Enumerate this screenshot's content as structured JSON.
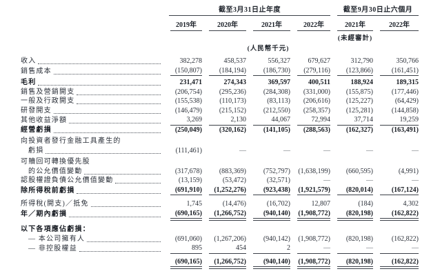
{
  "table": {
    "header": {
      "period_groups": [
        {
          "title": "截至3月31日止年度"
        },
        {
          "title": "截至9月30日止六個月"
        }
      ],
      "year_columns": [
        "2019年",
        "2020年",
        "2021年",
        "2022年",
        "2021年",
        "2022年"
      ],
      "unaudited_note": "(未經審計)",
      "currency_note": "(人民幣千元)"
    },
    "rows": [
      {
        "label": "收入",
        "leader": true,
        "values": [
          "382,278",
          "458,537",
          "556,327",
          "679,627",
          "312,790",
          "350,766"
        ]
      },
      {
        "label": "銷售成本",
        "leader": true,
        "rule": "single",
        "values": [
          "(150,807)",
          "(184,194)",
          "(186,730)",
          "(279,116)",
          "(123,866)",
          "(161,451)"
        ]
      },
      {
        "label": "毛利",
        "leader": true,
        "bold": true,
        "values": [
          "231,471",
          "274,343",
          "369,597",
          "400,511",
          "188,924",
          "189,315"
        ]
      },
      {
        "label": "銷售及營銷開支",
        "leader": true,
        "values": [
          "(206,754)",
          "(295,236)",
          "(284,308)",
          "(331,000)",
          "(155,875)",
          "(177,446)"
        ]
      },
      {
        "label": "一般及行政開支",
        "leader": true,
        "values": [
          "(155,538)",
          "(110,173)",
          "(83,113)",
          "(206,616)",
          "(125,227)",
          "(64,429)"
        ]
      },
      {
        "label": "研發開支",
        "leader": true,
        "values": [
          "(146,479)",
          "(215,152)",
          "(212,550)",
          "(258,357)",
          "(125,281)",
          "(144,858)"
        ]
      },
      {
        "label": "其他收益淨額",
        "leader": true,
        "rule": "single",
        "values": [
          "3,269",
          "2,130",
          "44,067",
          "72,994",
          "37,714",
          "19,259"
        ]
      },
      {
        "label": "經營虧損",
        "leader": true,
        "bold": true,
        "values": [
          "(250,049)",
          "(320,162)",
          "(141,105)",
          "(288,563)",
          "(162,327)",
          "(163,491)"
        ]
      },
      {
        "label": "向投資者發行金融工具產生的",
        "leader": false
      },
      {
        "label": "虧損",
        "leader": true,
        "indent": true,
        "values": [
          "(111,461)",
          "—",
          "—",
          "—",
          "—",
          "—"
        ]
      },
      {
        "label": "可贖回可轉換優先股",
        "leader": false
      },
      {
        "label": "的公允價值變動",
        "leader": true,
        "indent": true,
        "values": [
          "(317,678)",
          "(883,369)",
          "(752,797)",
          "(1,638,199)",
          "(660,595)",
          "(4,991)"
        ]
      },
      {
        "label": "認股權證負債公允價值變動",
        "leader": true,
        "values": [
          "(13,159)",
          "(53,472)",
          "(32,571)",
          "—",
          "—",
          "—"
        ]
      },
      {
        "label": "除所得稅前虧損",
        "leader": true,
        "bold": true,
        "rule": "single",
        "values": [
          "(691,910)",
          "(1,252,276)",
          "(923,438)",
          "(1,921,579)",
          "(820,014)",
          "(167,124)"
        ]
      },
      {
        "label": "所得稅(開支)／抵免",
        "leader": true,
        "values": [
          "1,745",
          "(14,476)",
          "(16,702)",
          "12,807",
          "(184)",
          "4,302"
        ]
      },
      {
        "label": "年／期內虧損",
        "leader": true,
        "bold": true,
        "rule": "double",
        "values": [
          "(690,165)",
          "(1,266,752)",
          "(940,140)",
          "(1,908,772)",
          "(820,198)",
          "(162,822)"
        ]
      },
      {
        "label": "以下各項應佔虧損：",
        "leader": false,
        "bold": true
      },
      {
        "label": "— 本公司擁有人",
        "leader": true,
        "indent": true,
        "values": [
          "(691,060)",
          "(1,267,206)",
          "(940,142)",
          "(1,908,772)",
          "(820,198)",
          "(162,822)"
        ]
      },
      {
        "label": "— 非控股權益",
        "leader": true,
        "indent": true,
        "rule": "single",
        "values": [
          "895",
          "454",
          "2",
          "—",
          "—",
          "—"
        ]
      },
      {
        "label": "",
        "leader": false,
        "bold": true,
        "rule": "double",
        "values": [
          "(690,165)",
          "(1,266,752)",
          "(940,140)",
          "(1,908,772)",
          "(820,198)",
          "(162,822)"
        ]
      }
    ]
  }
}
